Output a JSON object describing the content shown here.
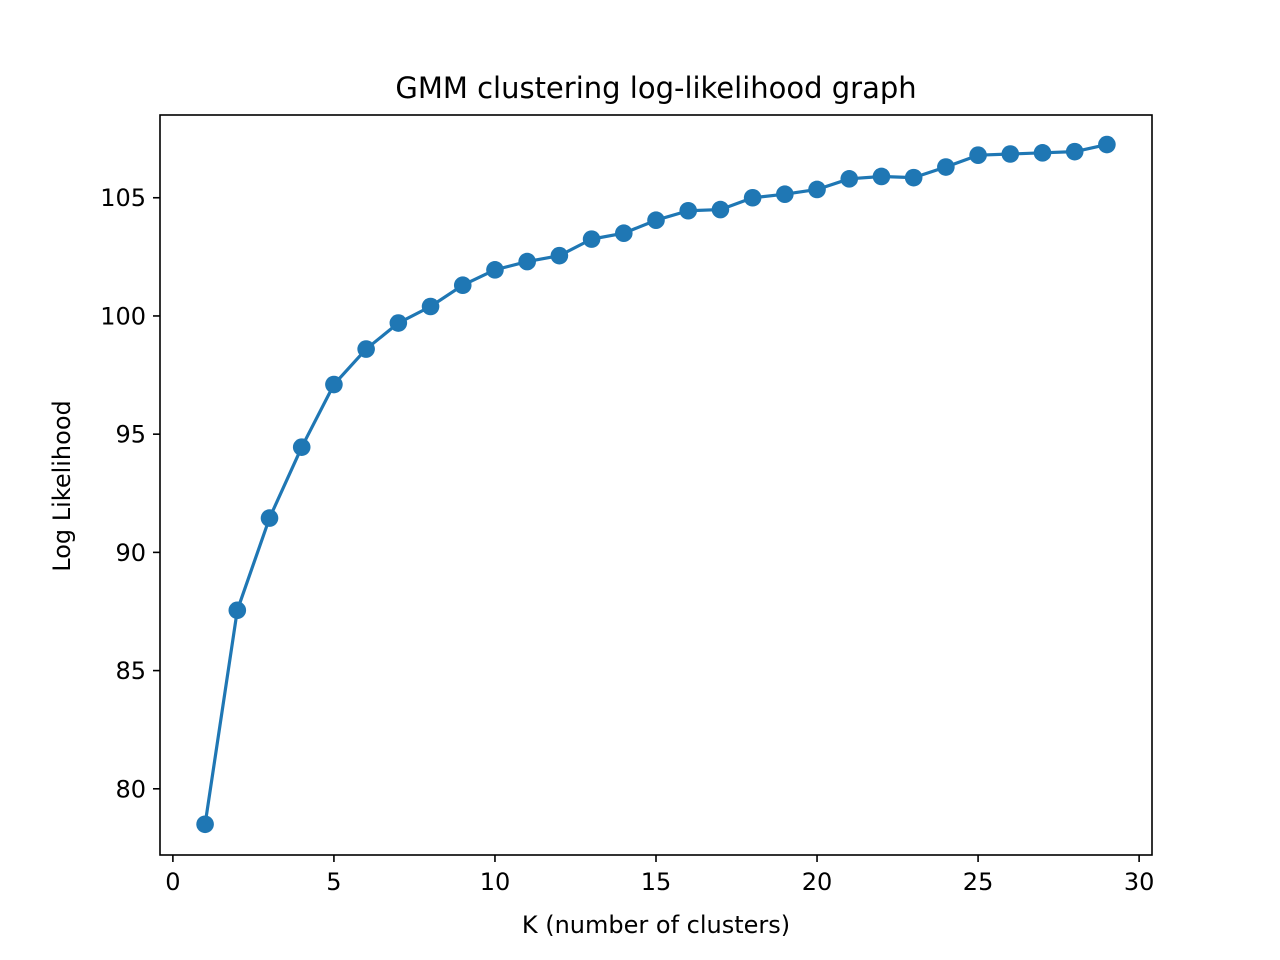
{
  "chart_data": {
    "type": "line",
    "title": "GMM clustering log-likelihood graph",
    "xlabel": "K (number of clusters)",
    "ylabel": "Log Likelihood",
    "xlim": [
      -0.4,
      30.4
    ],
    "ylim": [
      77.2,
      108.5
    ],
    "xticks": [
      0,
      5,
      10,
      15,
      20,
      25,
      30
    ],
    "yticks": [
      80,
      85,
      90,
      95,
      100,
      105
    ],
    "grid": false,
    "marker": "circle",
    "colors": {
      "series": "#1f77b4",
      "axes": "#000000",
      "background": "#ffffff"
    },
    "series": [
      {
        "x": [
          1,
          2,
          3,
          4,
          5,
          6,
          7,
          8,
          9,
          10,
          11,
          12,
          13,
          14,
          15,
          16,
          17,
          18,
          19,
          20,
          21,
          22,
          23,
          24,
          25,
          26,
          27,
          28,
          29
        ],
        "values": [
          78.5,
          87.55,
          91.45,
          94.45,
          97.1,
          98.6,
          99.7,
          100.4,
          101.3,
          101.95,
          102.3,
          102.55,
          103.25,
          103.5,
          104.05,
          104.45,
          104.5,
          105.0,
          105.15,
          105.35,
          105.8,
          105.9,
          105.85,
          106.3,
          106.8,
          106.85,
          106.9,
          106.95,
          107.25
        ]
      }
    ]
  }
}
